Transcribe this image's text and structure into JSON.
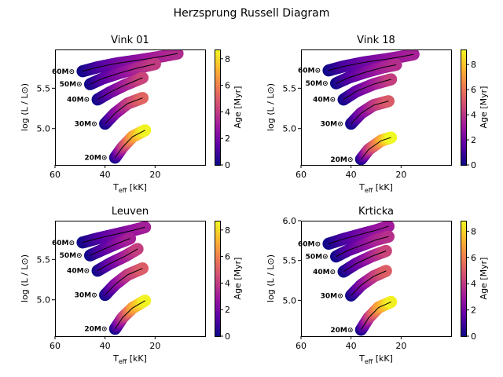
{
  "figure": {
    "title": "Herzsprung Russell Diagram",
    "colormap": [
      "#0d0887",
      "#5c01a6",
      "#9c179e",
      "#cc4778",
      "#ed7953",
      "#fdb42f",
      "#f0f921"
    ],
    "track_line_color": "#000000"
  },
  "chart_data": [
    {
      "type": "scatter",
      "title": "Vink 01",
      "xlabel": "Teff [kK]",
      "ylabel": "log (L / L⊙)",
      "xlim": [
        60,
        0
      ],
      "ylim": [
        4.55,
        5.98
      ],
      "xticks": [
        "60",
        "40",
        "20"
      ],
      "yticks": [
        "5.0",
        "5.5"
      ],
      "colorbar": {
        "label": "Age [Myr]",
        "range": [
          0,
          8.7
        ],
        "ticks": [
          "0",
          "2",
          "4",
          "6",
          "8"
        ]
      },
      "series": [
        {
          "name": "60M⊙",
          "teff": [
            49,
            43,
            35,
            26,
            18,
            11
          ],
          "logL": [
            5.71,
            5.76,
            5.81,
            5.85,
            5.89,
            5.93
          ],
          "age": [
            0,
            1,
            1.9,
            2.6,
            3.2,
            3.5
          ]
        },
        {
          "name": "50M⊙",
          "teff": [
            46,
            41,
            34,
            27,
            20
          ],
          "logL": [
            5.55,
            5.62,
            5.69,
            5.75,
            5.8
          ],
          "age": [
            0,
            1.2,
            2.3,
            3.3,
            4.0
          ]
        },
        {
          "name": "40M⊙",
          "teff": [
            43,
            38,
            32,
            25
          ],
          "logL": [
            5.36,
            5.45,
            5.54,
            5.63
          ],
          "age": [
            0,
            1.5,
            3,
            4.3
          ]
        },
        {
          "name": "30M⊙",
          "teff": [
            40,
            36,
            31,
            25
          ],
          "logL": [
            5.06,
            5.19,
            5.31,
            5.38
          ],
          "age": [
            0,
            2,
            3.8,
            5.2
          ]
        },
        {
          "name": "20M⊙",
          "teff": [
            36,
            33,
            29,
            24
          ],
          "logL": [
            4.64,
            4.77,
            4.9,
            4.98
          ],
          "age": [
            0,
            3.5,
            6.5,
            8.6
          ]
        }
      ]
    },
    {
      "type": "scatter",
      "title": "Vink 18",
      "xlabel": "Teff [kK]",
      "ylabel": "log (L / L⊙)",
      "xlim": [
        60,
        0
      ],
      "ylim": [
        4.55,
        5.98
      ],
      "xticks": [
        "60",
        "40",
        "20"
      ],
      "yticks": [
        "5.0",
        "5.5"
      ],
      "colorbar": {
        "label": "Age [Myr]",
        "range": [
          0,
          9.2
        ],
        "ticks": [
          "0",
          "2",
          "4",
          "6",
          "8"
        ]
      },
      "series": [
        {
          "name": "60M⊙",
          "teff": [
            49,
            43,
            35,
            26,
            20,
            15
          ],
          "logL": [
            5.72,
            5.77,
            5.82,
            5.86,
            5.89,
            5.92
          ],
          "age": [
            0,
            1,
            1.9,
            2.6,
            3.1,
            3.4
          ]
        },
        {
          "name": "50M⊙",
          "teff": [
            46,
            41,
            34,
            27,
            22
          ],
          "logL": [
            5.56,
            5.63,
            5.7,
            5.76,
            5.79
          ],
          "age": [
            0,
            1.2,
            2.3,
            3.3,
            3.8
          ]
        },
        {
          "name": "40M⊙",
          "teff": [
            43,
            38,
            31,
            24
          ],
          "logL": [
            5.36,
            5.46,
            5.55,
            5.61
          ],
          "age": [
            0,
            1.5,
            3,
            4.3
          ]
        },
        {
          "name": "30M⊙",
          "teff": [
            40,
            36,
            31,
            25
          ],
          "logL": [
            5.06,
            5.19,
            5.29,
            5.34
          ],
          "age": [
            0,
            2,
            3.8,
            5.2
          ]
        },
        {
          "name": "20M⊙",
          "teff": [
            36,
            33,
            28,
            24
          ],
          "logL": [
            4.62,
            4.74,
            4.85,
            4.89
          ],
          "age": [
            0,
            3.8,
            7,
            9.2
          ]
        }
      ]
    },
    {
      "type": "scatter",
      "title": "Leuven",
      "xlabel": "Teff [kK]",
      "ylabel": "log (L / L⊙)",
      "xlim": [
        60,
        0
      ],
      "ylim": [
        4.55,
        5.98
      ],
      "xticks": [
        "60",
        "40",
        "20"
      ],
      "yticks": [
        "5.0",
        "5.5"
      ],
      "colorbar": {
        "label": "Age [Myr]",
        "range": [
          0,
          8.7
        ],
        "ticks": [
          "0",
          "2",
          "4",
          "6",
          "8"
        ]
      },
      "series": [
        {
          "name": "60M⊙",
          "teff": [
            49,
            43,
            36,
            29,
            24
          ],
          "logL": [
            5.71,
            5.76,
            5.81,
            5.86,
            5.9
          ],
          "age": [
            0,
            1,
            1.9,
            2.6,
            3.1
          ]
        },
        {
          "name": "50M⊙",
          "teff": [
            46,
            41,
            35,
            30
          ],
          "logL": [
            5.55,
            5.62,
            5.7,
            5.76
          ],
          "age": [
            0,
            1.2,
            2.3,
            3.2
          ]
        },
        {
          "name": "40M⊙",
          "teff": [
            43,
            38,
            32,
            27
          ],
          "logL": [
            5.36,
            5.45,
            5.54,
            5.63
          ],
          "age": [
            0,
            1.5,
            3,
            4.1
          ]
        },
        {
          "name": "30M⊙",
          "teff": [
            40,
            36,
            31,
            25
          ],
          "logL": [
            5.06,
            5.19,
            5.31,
            5.39
          ],
          "age": [
            0,
            2,
            3.8,
            5.0
          ]
        },
        {
          "name": "20M⊙",
          "teff": [
            36,
            33,
            29,
            24
          ],
          "logL": [
            4.64,
            4.78,
            4.9,
            4.99
          ],
          "age": [
            0,
            3.5,
            6.5,
            8.6
          ]
        }
      ]
    },
    {
      "type": "scatter",
      "title": "Krticka",
      "xlabel": "Teff [kK]",
      "ylabel": "log (L / L⊙)",
      "xlim": [
        60,
        0
      ],
      "ylim": [
        4.55,
        6.0
      ],
      "xticks": [
        "60",
        "40",
        "20"
      ],
      "yticks": [
        "5.0",
        "5.5",
        "6.0"
      ],
      "colorbar": {
        "label": "Age [Myr]",
        "range": [
          0,
          8.8
        ],
        "ticks": [
          "0",
          "2",
          "4",
          "6",
          "8"
        ]
      },
      "series": [
        {
          "name": "60M⊙",
          "teff": [
            49,
            43,
            36,
            30,
            25
          ],
          "logL": [
            5.71,
            5.77,
            5.83,
            5.88,
            5.93
          ],
          "age": [
            0,
            1,
            1.9,
            2.6,
            3.1
          ]
        },
        {
          "name": "50M⊙",
          "teff": [
            46,
            41,
            35,
            30,
            25
          ],
          "logL": [
            5.55,
            5.63,
            5.7,
            5.76,
            5.8
          ],
          "age": [
            0,
            1.2,
            2.3,
            3.2,
            3.7
          ]
        },
        {
          "name": "40M⊙",
          "teff": [
            43,
            38,
            32,
            26
          ],
          "logL": [
            5.36,
            5.46,
            5.55,
            5.62
          ],
          "age": [
            0,
            1.5,
            3,
            4.3
          ]
        },
        {
          "name": "30M⊙",
          "teff": [
            40,
            36,
            31,
            26
          ],
          "logL": [
            5.06,
            5.19,
            5.3,
            5.37
          ],
          "age": [
            0,
            2,
            3.8,
            5.1
          ]
        },
        {
          "name": "20M⊙",
          "teff": [
            36,
            33,
            29,
            24
          ],
          "logL": [
            4.63,
            4.78,
            4.91,
            4.98
          ],
          "age": [
            0,
            3.5,
            6.5,
            8.6
          ]
        }
      ]
    }
  ]
}
